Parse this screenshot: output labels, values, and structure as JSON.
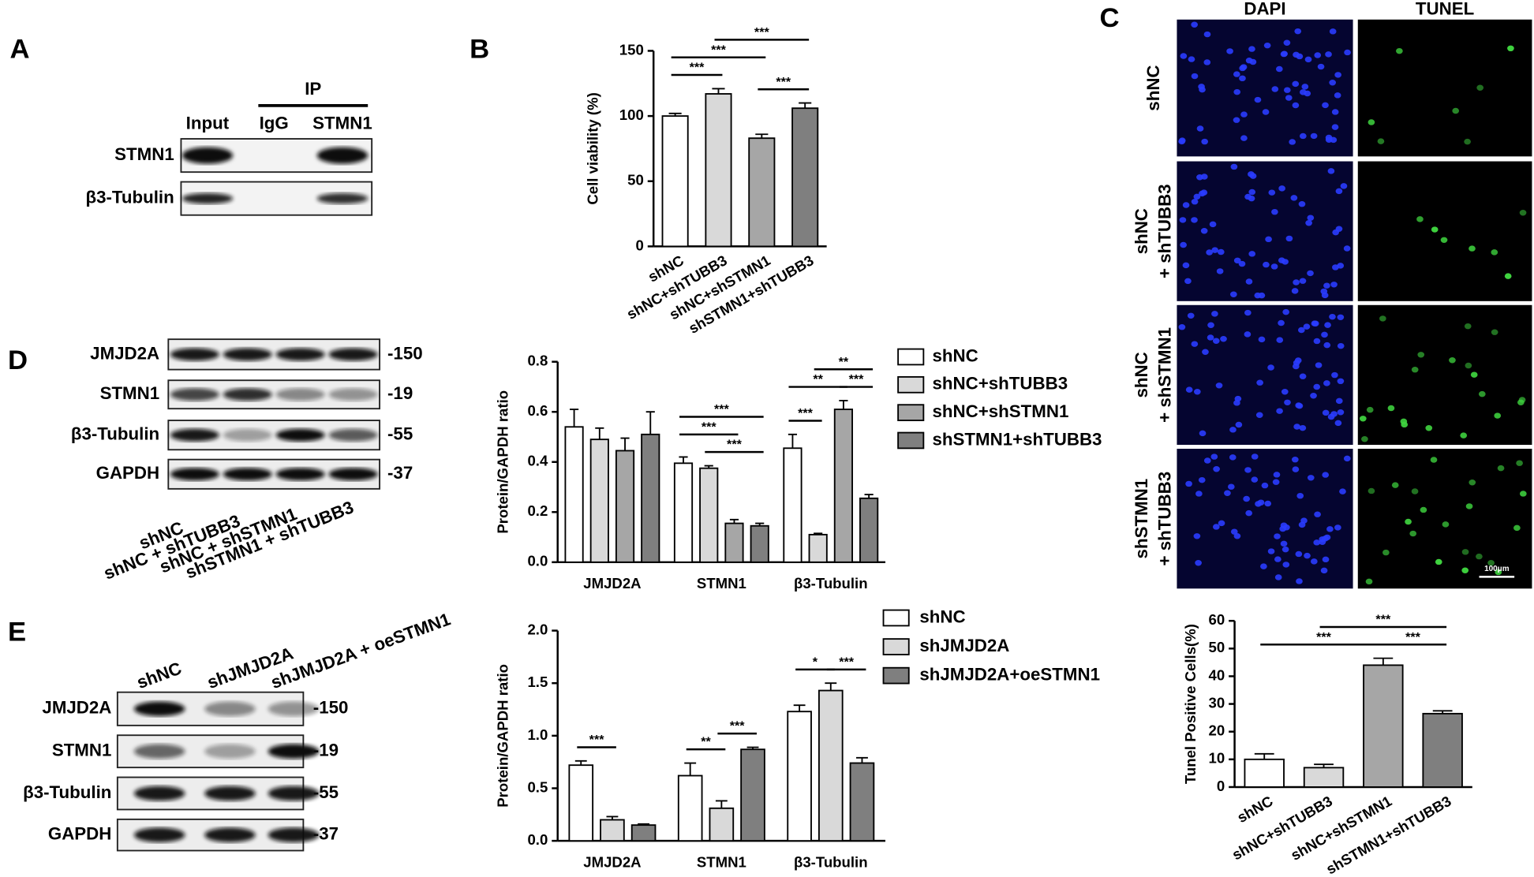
{
  "panel_labels": [
    "A",
    "B",
    "C",
    "D",
    "E"
  ],
  "blot_A": {
    "header": "IP",
    "lanes": [
      "Input",
      "IgG",
      "STMN1"
    ],
    "rows": [
      "STMN1",
      "β3-Tubulin"
    ]
  },
  "blot_D": {
    "lanes": [
      "shNC",
      "shNC + shTUBB3",
      "shNC + shSTMN1",
      "shSTMN1 + shTUBB3"
    ],
    "rows": [
      "JMJD2A",
      "STMN1",
      "β3-Tubulin",
      "GAPDH"
    ],
    "sizes": [
      "-150",
      "-19",
      "-55",
      "-37"
    ]
  },
  "blot_E": {
    "lanes": [
      "shNC",
      "shJMJD2A",
      "shJMJD2A + oeSTMN1"
    ],
    "rows": [
      "JMJD2A",
      "STMN1",
      "β3-Tubulin",
      "GAPDH"
    ],
    "sizes": [
      "-150",
      "-19",
      "-55",
      "-37"
    ]
  },
  "images_C": {
    "columns": [
      "DAPI",
      "TUNEL"
    ],
    "rows": [
      [
        "shNC"
      ],
      [
        "shNC",
        "+ shTUBB3"
      ],
      [
        "shNC",
        "+ shSTMN1"
      ],
      [
        "shSTMN1",
        "+ shTUBB3"
      ]
    ],
    "scale_bar": "100μm"
  },
  "chart_data": [
    {
      "type": "bar",
      "y_label": "Cell viability (%)",
      "categories": [
        "shNC",
        "shNC+shTUBB3",
        "shNC+shSTMN1",
        "shSTMN1+shTUBB3"
      ],
      "values": [
        100,
        117,
        83,
        106
      ],
      "errors": [
        2,
        4,
        3,
        4
      ],
      "colors": [
        "#ffffff",
        "#d9d9d9",
        "#a6a6a6",
        "#7f7f7f"
      ],
      "ylim": [
        0,
        150
      ],
      "yticks": [
        0,
        50,
        100,
        150
      ],
      "significance": [
        {
          "pair": [
            0,
            1
          ],
          "label": "***"
        },
        {
          "pair": [
            0,
            2
          ],
          "label": "***"
        },
        {
          "pair": [
            2,
            3
          ],
          "label": "***"
        },
        {
          "pair": [
            1,
            3
          ],
          "label": "***"
        }
      ]
    },
    {
      "type": "grouped_bar",
      "y_label": "Protein/GAPDH ratio",
      "categories": [
        "JMJD2A",
        "STMN1",
        "β3-Tubulin"
      ],
      "series": [
        {
          "name": "shNC",
          "color": "#ffffff",
          "values": [
            0.54,
            0.395,
            0.455
          ],
          "errors": [
            0.07,
            0.025,
            0.055
          ]
        },
        {
          "name": "shNC+shTUBB3",
          "color": "#d9d9d9",
          "values": [
            0.49,
            0.375,
            0.11
          ],
          "errors": [
            0.045,
            0.01,
            0.005
          ]
        },
        {
          "name": "shNC+shSTMN1",
          "color": "#a6a6a6",
          "values": [
            0.445,
            0.155,
            0.61
          ],
          "errors": [
            0.05,
            0.015,
            0.035
          ]
        },
        {
          "name": "shSTMN1+shTUBB3",
          "color": "#7f7f7f",
          "values": [
            0.51,
            0.145,
            0.255
          ],
          "errors": [
            0.09,
            0.01,
            0.015
          ]
        }
      ],
      "ylim": [
        0,
        0.8
      ],
      "yticks": [
        {
          "value": 0,
          "label": "0.0"
        },
        0.2,
        0.4,
        0.6,
        0.8
      ],
      "legend": "right",
      "significance": [
        {
          "category": 1,
          "pair": [
            1,
            3
          ],
          "label": "***"
        },
        {
          "category": 1,
          "pair": [
            0,
            2
          ],
          "label": "***"
        },
        {
          "category": 1,
          "pair": [
            0,
            3
          ],
          "label": "***"
        },
        {
          "category": 2,
          "pair": [
            0,
            1
          ],
          "label": "***"
        },
        {
          "category": 2,
          "pair": [
            0,
            2
          ],
          "label": "**"
        },
        {
          "category": 2,
          "pair": [
            2,
            3
          ],
          "label": "***"
        },
        {
          "category": 2,
          "pair": [
            1,
            3
          ],
          "label": "**"
        }
      ]
    },
    {
      "type": "grouped_bar",
      "y_label": "Protein/GAPDH ratio",
      "categories": [
        "JMJD2A",
        "STMN1",
        "β3-Tubulin"
      ],
      "series": [
        {
          "name": "shNC",
          "color": "#ffffff",
          "values": [
            0.72,
            0.62,
            1.23
          ],
          "errors": [
            0.04,
            0.12,
            0.06
          ]
        },
        {
          "name": "shJMJD2A",
          "color": "#d9d9d9",
          "values": [
            0.2,
            0.31,
            1.43
          ],
          "errors": [
            0.03,
            0.07,
            0.07
          ]
        },
        {
          "name": "shJMJD2A+oeSTMN1",
          "color": "#7f7f7f",
          "values": [
            0.15,
            0.87,
            0.74
          ],
          "errors": [
            0.01,
            0.02,
            0.05
          ]
        }
      ],
      "ylim": [
        0,
        2
      ],
      "yticks": [
        {
          "value": 0,
          "label": "0.0"
        },
        0.5,
        {
          "value": 1,
          "label": "1.0"
        },
        1.5,
        {
          "value": 2,
          "label": "2.0"
        }
      ],
      "legend": "right",
      "significance": [
        {
          "category": 0,
          "pair": [
            0,
            1
          ],
          "label": "***"
        },
        {
          "category": 1,
          "pair": [
            0,
            1
          ],
          "label": "**"
        },
        {
          "category": 1,
          "pair": [
            1,
            2
          ],
          "label": "***"
        },
        {
          "category": 2,
          "pair": [
            0,
            1
          ],
          "label": "*"
        },
        {
          "category": 2,
          "pair": [
            1,
            2
          ],
          "label": "***"
        }
      ]
    },
    {
      "type": "bar",
      "y_label": "Tunel Positive Cells(%)",
      "categories": [
        "shNC",
        "shNC+shTUBB3",
        "shNC+shSTMN1",
        "shSTMN1+shTUBB3"
      ],
      "values": [
        10,
        7,
        44,
        26.5
      ],
      "errors": [
        2,
        1.2,
        2.5,
        1
      ],
      "colors": [
        "#ffffff",
        "#d9d9d9",
        "#a6a6a6",
        "#7f7f7f"
      ],
      "ylim": [
        0,
        60
      ],
      "yticks": [
        0,
        10,
        20,
        30,
        40,
        50,
        60
      ],
      "significance": [
        {
          "pair": [
            0,
            2
          ],
          "label": "***"
        },
        {
          "pair": [
            2,
            3
          ],
          "label": "***"
        },
        {
          "pair": [
            1,
            3
          ],
          "label": "***"
        }
      ]
    }
  ]
}
